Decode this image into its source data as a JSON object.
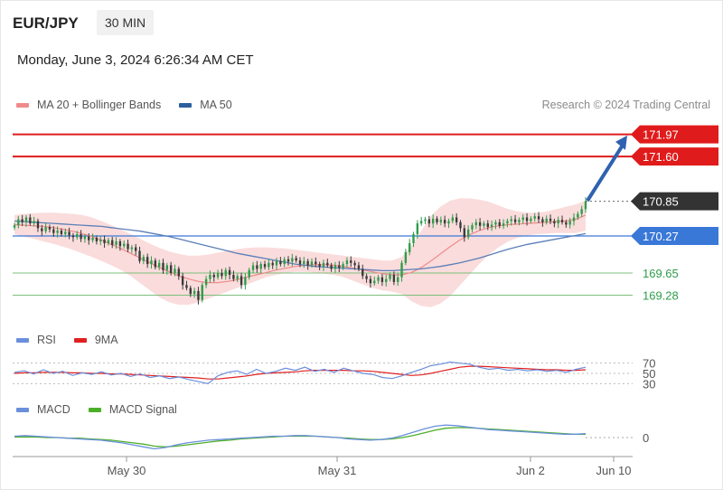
{
  "header": {
    "symbol": "EUR/JPY",
    "interval": "30 MIN",
    "datetime": "Monday, June 3, 2024 6:26:34 AM CET"
  },
  "legend_main": [
    {
      "label": "MA 20 + Bollinger Bands",
      "color": "#f08a8a"
    },
    {
      "label": "MA 50",
      "color": "#2c5f9e"
    }
  ],
  "credit": "Research © 2024 Trading Central",
  "legend_rsi": [
    {
      "label": "RSI",
      "color": "#6b8fdc"
    },
    {
      "label": "9MA",
      "color": "#e02020"
    }
  ],
  "legend_macd": [
    {
      "label": "MACD",
      "color": "#6b8fdc"
    },
    {
      "label": "MACD Signal",
      "color": "#4caf2a"
    }
  ],
  "colors": {
    "bull": "#2e9c4a",
    "bear": "#3a3a3a",
    "resistance": "#e01b1b",
    "support": "#2e9c4a",
    "pivot": "#3a78d8",
    "arrow": "#2f62b0",
    "band": "#fadcdc"
  },
  "chart_data": [
    {
      "type": "candlestick",
      "name": "price",
      "ylim": [
        169.0,
        172.1
      ],
      "x_ticks": [
        "May 30",
        "May 31",
        "Jun 2",
        "Jun 10"
      ],
      "levels": [
        {
          "label": "171.97",
          "value": 171.97,
          "kind": "resistance"
        },
        {
          "label": "171.60",
          "value": 171.6,
          "kind": "resistance"
        },
        {
          "label": "170.85",
          "value": 170.85,
          "kind": "current"
        },
        {
          "label": "170.27",
          "value": 170.27,
          "kind": "pivot"
        },
        {
          "label": "169.65",
          "value": 169.65,
          "kind": "support"
        },
        {
          "label": "169.28",
          "value": 169.28,
          "kind": "support"
        }
      ],
      "forecast_arrow": {
        "from": 170.86,
        "to": 171.95
      },
      "close": [
        170.45,
        170.55,
        170.5,
        170.58,
        170.48,
        170.52,
        170.4,
        170.35,
        170.42,
        170.38,
        170.32,
        170.36,
        170.3,
        170.34,
        170.28,
        170.25,
        170.3,
        170.22,
        170.26,
        170.2,
        170.24,
        170.18,
        170.21,
        170.15,
        170.2,
        170.12,
        170.18,
        170.1,
        170.14,
        170.05,
        170.08,
        170.02,
        169.85,
        169.92,
        169.8,
        169.86,
        169.75,
        169.82,
        169.7,
        169.78,
        169.65,
        169.72,
        169.6,
        169.45,
        169.4,
        169.3,
        169.35,
        169.2,
        169.45,
        169.55,
        169.62,
        169.58,
        169.65,
        169.6,
        169.7,
        169.62,
        169.55,
        169.6,
        169.45,
        169.58,
        169.7,
        169.78,
        169.72,
        169.8,
        169.75,
        169.82,
        169.78,
        169.85,
        169.8,
        169.88,
        169.84,
        169.9,
        169.86,
        169.8,
        169.85,
        169.78,
        169.84,
        169.8,
        169.76,
        169.82,
        169.78,
        169.72,
        169.78,
        169.74,
        169.8,
        169.86,
        169.82,
        169.78,
        169.72,
        169.6,
        169.55,
        169.48,
        169.52,
        169.58,
        169.5,
        169.55,
        169.62,
        169.5,
        169.58,
        169.82,
        170.0,
        170.15,
        170.3,
        170.48,
        170.52,
        170.55,
        170.48,
        170.56,
        170.5,
        170.54,
        170.48,
        170.52,
        170.58,
        170.5,
        170.4,
        170.25,
        170.38,
        170.45,
        170.5,
        170.44,
        170.48,
        170.42,
        170.46,
        170.5,
        170.44,
        170.48,
        170.52,
        170.55,
        170.5,
        170.54,
        170.58,
        170.52,
        170.56,
        170.6,
        170.55,
        170.5,
        170.56,
        170.52,
        170.48,
        170.54,
        170.5,
        170.46,
        170.52,
        170.58,
        170.64,
        170.72,
        170.85
      ],
      "ma50": [
        170.52,
        170.51,
        170.5,
        170.49,
        170.48,
        170.47,
        170.46,
        170.45,
        170.44,
        170.43,
        170.41,
        170.39,
        170.37,
        170.35,
        170.32,
        170.29,
        170.26,
        170.22,
        170.18,
        170.14,
        170.1,
        170.06,
        170.02,
        169.98,
        169.95,
        169.92,
        169.89,
        169.86,
        169.83,
        169.8,
        169.78,
        169.76,
        169.75,
        169.74,
        169.73,
        169.72,
        169.71,
        169.7,
        169.69,
        169.69,
        169.7,
        169.71,
        169.72,
        169.74,
        169.76,
        169.79,
        169.82,
        169.86,
        169.9,
        169.95,
        170.0,
        170.05,
        170.09,
        170.13,
        170.16,
        170.19,
        170.22,
        170.25,
        170.28,
        170.31
      ],
      "ma20": [
        170.46,
        170.45,
        170.44,
        170.43,
        170.41,
        170.38,
        170.35,
        170.31,
        170.26,
        170.2,
        170.13,
        170.06,
        169.98,
        169.9,
        169.82,
        169.74,
        169.67,
        169.6,
        169.55,
        169.51,
        169.49,
        169.49,
        169.51,
        169.54,
        169.58,
        169.62,
        169.66,
        169.7,
        169.73,
        169.76,
        169.78,
        169.79,
        169.79,
        169.78,
        169.76,
        169.73,
        169.7,
        169.67,
        169.64,
        169.62,
        169.62,
        169.66,
        169.74,
        169.85,
        169.97,
        170.09,
        170.2,
        170.29,
        170.36,
        170.41,
        170.44,
        170.46,
        170.47,
        170.48,
        170.49,
        170.5,
        170.51,
        170.52,
        170.55,
        170.62
      ],
      "band_upper": [
        170.62,
        170.64,
        170.65,
        170.66,
        170.66,
        170.65,
        170.64,
        170.62,
        170.58,
        170.52,
        170.45,
        170.38,
        170.3,
        170.22,
        170.14,
        170.07,
        170.01,
        169.97,
        169.94,
        169.94,
        169.96,
        169.99,
        170.02,
        170.05,
        170.07,
        170.08,
        170.08,
        170.07,
        170.06,
        170.04,
        170.02,
        170.0,
        169.98,
        169.96,
        169.94,
        169.92,
        169.9,
        169.88,
        169.86,
        169.86,
        169.92,
        170.1,
        170.35,
        170.6,
        170.76,
        170.86,
        170.9,
        170.9,
        170.88,
        170.84,
        170.78,
        170.72,
        170.68,
        170.66,
        170.66,
        170.68,
        170.72,
        170.76,
        170.8,
        170.86
      ],
      "band_lower": [
        170.3,
        170.26,
        170.22,
        170.18,
        170.14,
        170.09,
        170.04,
        169.98,
        169.92,
        169.85,
        169.78,
        169.7,
        169.6,
        169.48,
        169.36,
        169.24,
        169.16,
        169.12,
        169.12,
        169.16,
        169.22,
        169.28,
        169.34,
        169.4,
        169.46,
        169.52,
        169.58,
        169.62,
        169.65,
        169.67,
        169.67,
        169.66,
        169.64,
        169.62,
        169.58,
        169.52,
        169.46,
        169.4,
        169.36,
        169.34,
        169.3,
        169.18,
        169.1,
        169.08,
        169.14,
        169.26,
        169.44,
        169.62,
        169.8,
        169.96,
        170.08,
        170.18,
        170.24,
        170.28,
        170.3,
        170.31,
        170.32,
        170.32,
        170.32,
        170.36
      ]
    },
    {
      "type": "line",
      "name": "RSI",
      "ylim": [
        20,
        80
      ],
      "levels": [
        {
          "label": "70",
          "value": 70
        },
        {
          "label": "50",
          "value": 50
        },
        {
          "label": "30",
          "value": 30
        }
      ],
      "series": [
        {
          "name": "RSI",
          "values": [
            52,
            55,
            49,
            57,
            50,
            54,
            46,
            51,
            48,
            53,
            47,
            50,
            44,
            49,
            42,
            45,
            40,
            43,
            38,
            34,
            30,
            45,
            52,
            55,
            48,
            58,
            50,
            54,
            60,
            56,
            62,
            54,
            58,
            52,
            60,
            55,
            50,
            48,
            42,
            40,
            45,
            52,
            58,
            65,
            68,
            72,
            70,
            68,
            62,
            58,
            60,
            56,
            58,
            55,
            57,
            54,
            56,
            52,
            58,
            62
          ]
        },
        {
          "name": "9MA",
          "values": [
            50,
            51,
            51,
            52,
            52,
            52,
            51,
            51,
            50,
            50,
            49,
            49,
            48,
            47,
            46,
            45,
            44,
            43,
            42,
            41,
            39,
            39,
            41,
            43,
            45,
            48,
            50,
            51,
            52,
            53,
            55,
            56,
            56,
            56,
            56,
            55,
            55,
            54,
            52,
            50,
            48,
            46,
            47,
            50,
            54,
            58,
            62,
            64,
            64,
            63,
            62,
            61,
            60,
            59,
            58,
            57,
            57,
            56,
            56,
            57
          ]
        }
      ]
    },
    {
      "type": "line",
      "name": "MACD",
      "ylim": [
        -0.3,
        0.3
      ],
      "levels": [
        {
          "label": "0",
          "value": 0
        }
      ],
      "series": [
        {
          "name": "MACD",
          "values": [
            0.02,
            0.03,
            0.02,
            0.01,
            0.0,
            -0.01,
            -0.02,
            -0.03,
            -0.04,
            -0.06,
            -0.08,
            -0.11,
            -0.14,
            -0.17,
            -0.15,
            -0.11,
            -0.08,
            -0.06,
            -0.04,
            -0.03,
            -0.02,
            -0.01,
            0.0,
            0.01,
            0.02,
            0.02,
            0.03,
            0.03,
            0.02,
            0.01,
            0.0,
            -0.02,
            -0.03,
            -0.04,
            -0.03,
            -0.01,
            0.03,
            0.08,
            0.13,
            0.17,
            0.19,
            0.18,
            0.16,
            0.14,
            0.12,
            0.11,
            0.1,
            0.09,
            0.08,
            0.07,
            0.06,
            0.05,
            0.05,
            0.06
          ]
        },
        {
          "name": "MACD Signal",
          "values": [
            0.01,
            0.01,
            0.01,
            0.0,
            0.0,
            -0.01,
            -0.01,
            -0.02,
            -0.03,
            -0.04,
            -0.06,
            -0.08,
            -0.1,
            -0.13,
            -0.14,
            -0.13,
            -0.11,
            -0.09,
            -0.07,
            -0.05,
            -0.04,
            -0.02,
            -0.01,
            0.0,
            0.01,
            0.02,
            0.02,
            0.02,
            0.02,
            0.01,
            0.0,
            -0.01,
            -0.02,
            -0.03,
            -0.03,
            -0.02,
            0.0,
            0.03,
            0.07,
            0.11,
            0.14,
            0.15,
            0.15,
            0.14,
            0.13,
            0.12,
            0.11,
            0.1,
            0.09,
            0.08,
            0.07,
            0.06,
            0.05,
            0.05
          ]
        }
      ]
    }
  ]
}
